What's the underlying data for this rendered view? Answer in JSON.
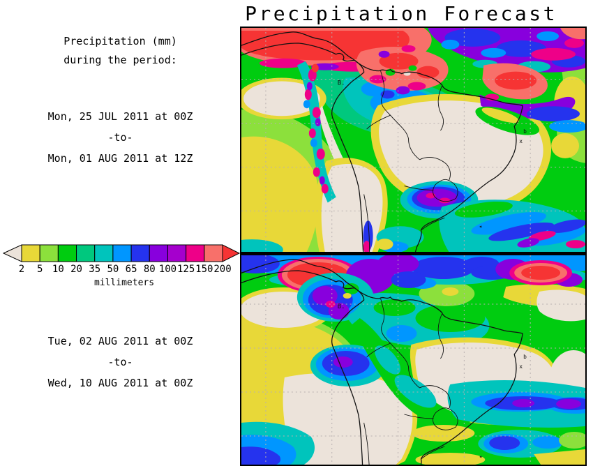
{
  "title": "Precipitation Forecast",
  "info_panel": {
    "heading_line1": "Precipitation (mm)",
    "heading_line2": "during the period:",
    "period1": {
      "start": "Mon, 25 JUL 2011 at 00Z",
      "separator": "-to-",
      "end": "Mon, 01 AUG 2011 at 12Z"
    },
    "period2": {
      "start": "Tue, 02 AUG 2011 at 00Z",
      "separator": "-to-",
      "end": "Wed, 10 AUG 2011 at 00Z"
    }
  },
  "colorbar": {
    "unit_label": "millimeters",
    "tick_labels": [
      "2",
      "5",
      "10",
      "20",
      "35",
      "50",
      "65",
      "80",
      "100",
      "125",
      "150",
      "200"
    ],
    "segment_colors": [
      "#e8d838",
      "#8ce03c",
      "#00cc10",
      "#00c87e",
      "#00c4bc",
      "#0096ff",
      "#2533ee",
      "#8800dd",
      "#a500cd",
      "#ee0088",
      "#f8706a"
    ],
    "underflow_color": "#ece3da",
    "overflow_color": "#f63434",
    "outline_color": "#000000"
  },
  "chart_data": {
    "type": "heatmap",
    "title": "Precipitation Forecast",
    "variable": "Precipitation (mm)",
    "legend": {
      "label": "millimeters",
      "thresholds": [
        2,
        5,
        10,
        20,
        35,
        50,
        65,
        80,
        100,
        125,
        150,
        200
      ],
      "colors": [
        "#ece3da",
        "#e8d838",
        "#8ce03c",
        "#00cc10",
        "#00c87e",
        "#00c4bc",
        "#0096ff",
        "#2533ee",
        "#8800dd",
        "#a500cd",
        "#ee0088",
        "#f8706a",
        "#f63434"
      ]
    },
    "panels": [
      {
        "period_start": "Mon, 25 JUL 2011 at 00Z",
        "period_end": "Mon, 01 AUG 2011 at 12Z"
      },
      {
        "period_start": "Tue, 02 AUG 2011 at 00Z",
        "period_end": "Wed, 10 AUG 2011 at 00Z"
      }
    ]
  }
}
